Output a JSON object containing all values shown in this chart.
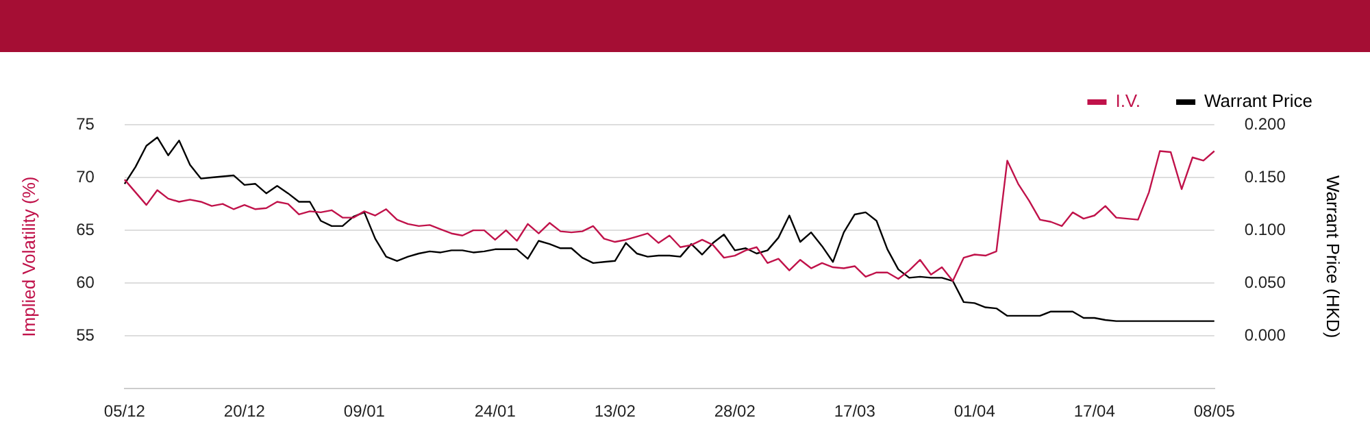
{
  "chart_data": {
    "type": "line",
    "ylabel": "Implied Volatility (%)",
    "y2label": "Warrant Price (HKD)",
    "categories": [
      "05/12",
      null,
      null,
      null,
      null,
      null,
      null,
      null,
      null,
      null,
      null,
      "20/12",
      null,
      null,
      null,
      null,
      null,
      null,
      null,
      null,
      null,
      null,
      "09/01",
      null,
      null,
      null,
      null,
      null,
      null,
      null,
      null,
      null,
      null,
      null,
      "24/01",
      null,
      null,
      null,
      null,
      null,
      null,
      null,
      null,
      null,
      null,
      "13/02",
      null,
      null,
      null,
      null,
      null,
      null,
      null,
      null,
      null,
      null,
      "28/02",
      null,
      null,
      null,
      null,
      null,
      null,
      null,
      null,
      null,
      null,
      "17/03",
      null,
      null,
      null,
      null,
      null,
      null,
      null,
      null,
      null,
      null,
      "01/04",
      null,
      null,
      null,
      null,
      null,
      null,
      null,
      null,
      null,
      null,
      "17/04",
      null,
      null,
      null,
      null,
      null,
      null,
      null,
      null,
      null,
      null,
      "08/05"
    ],
    "series": [
      {
        "name": "I.V.",
        "color": "#c0124a",
        "values": [
          69.8,
          68.6,
          67.4,
          68.8,
          68.0,
          67.7,
          67.9,
          67.7,
          67.3,
          67.5,
          67.0,
          67.4,
          67.0,
          67.1,
          67.7,
          67.5,
          66.5,
          66.8,
          66.7,
          66.9,
          66.2,
          66.2,
          66.8,
          66.4,
          67.0,
          66.0,
          65.6,
          65.4,
          65.5,
          65.1,
          64.7,
          64.5,
          65.0,
          65.0,
          64.1,
          65.0,
          64.0,
          65.6,
          64.7,
          65.7,
          64.9,
          64.8,
          64.9,
          65.4,
          64.2,
          63.9,
          64.1,
          64.4,
          64.7,
          63.8,
          64.5,
          63.4,
          63.6,
          64.1,
          63.6,
          62.4,
          62.6,
          63.1,
          63.4,
          61.9,
          62.3,
          61.2,
          62.2,
          61.4,
          61.9,
          61.5,
          61.4,
          61.6,
          60.6,
          61.0,
          61.0,
          60.4,
          61.2,
          62.2,
          60.8,
          61.5,
          60.2,
          62.4,
          62.7,
          62.6,
          63.0,
          71.6,
          69.4,
          67.8,
          66.0,
          65.8,
          65.4,
          66.7,
          66.1,
          66.4,
          67.3,
          66.2,
          66.1,
          66.0,
          68.6,
          72.5,
          72.4,
          68.9,
          71.9,
          71.6,
          72.5
        ]
      },
      {
        "name": "Warrant Price",
        "color": "#000000",
        "axis": "y2",
        "values": [
          0.144,
          0.16,
          0.18,
          0.188,
          0.171,
          0.185,
          0.162,
          0.149,
          0.15,
          0.151,
          0.152,
          0.143,
          0.144,
          0.135,
          0.142,
          0.135,
          0.127,
          0.127,
          0.109,
          0.104,
          0.104,
          0.113,
          0.117,
          0.092,
          0.075,
          0.071,
          0.075,
          0.078,
          0.08,
          0.079,
          0.081,
          0.081,
          0.079,
          0.08,
          0.082,
          0.082,
          0.082,
          0.073,
          0.09,
          0.087,
          0.083,
          0.083,
          0.074,
          0.069,
          0.07,
          0.071,
          0.088,
          0.078,
          0.075,
          0.076,
          0.076,
          0.075,
          0.087,
          0.077,
          0.088,
          0.096,
          0.081,
          0.083,
          0.078,
          0.081,
          0.093,
          0.114,
          0.089,
          0.098,
          0.085,
          0.07,
          0.098,
          0.115,
          0.117,
          0.109,
          0.082,
          0.063,
          0.055,
          0.056,
          0.055,
          0.055,
          0.052,
          0.032,
          0.031,
          0.027,
          0.026,
          0.019,
          0.019,
          0.019,
          0.019,
          0.023,
          0.023,
          0.023,
          0.017,
          0.017,
          0.015,
          0.014,
          0.014,
          0.014,
          0.014,
          0.014,
          0.014,
          0.014,
          0.014,
          0.014,
          0.014
        ]
      }
    ],
    "ylim": [
      50,
      75
    ],
    "yticks": [
      55,
      60,
      65,
      70,
      75
    ],
    "y2lim": [
      -0.05,
      0.2
    ],
    "y2ticks": [
      {
        "value": 0,
        "label": "0.000"
      },
      {
        "value": 0.05,
        "label": "0.050"
      },
      {
        "value": 0.1,
        "label": "0.100"
      },
      {
        "value": 0.15,
        "label": "0.150"
      },
      {
        "value": 0.2,
        "label": "0.200"
      }
    ],
    "grid": "y",
    "legend": "top right"
  }
}
